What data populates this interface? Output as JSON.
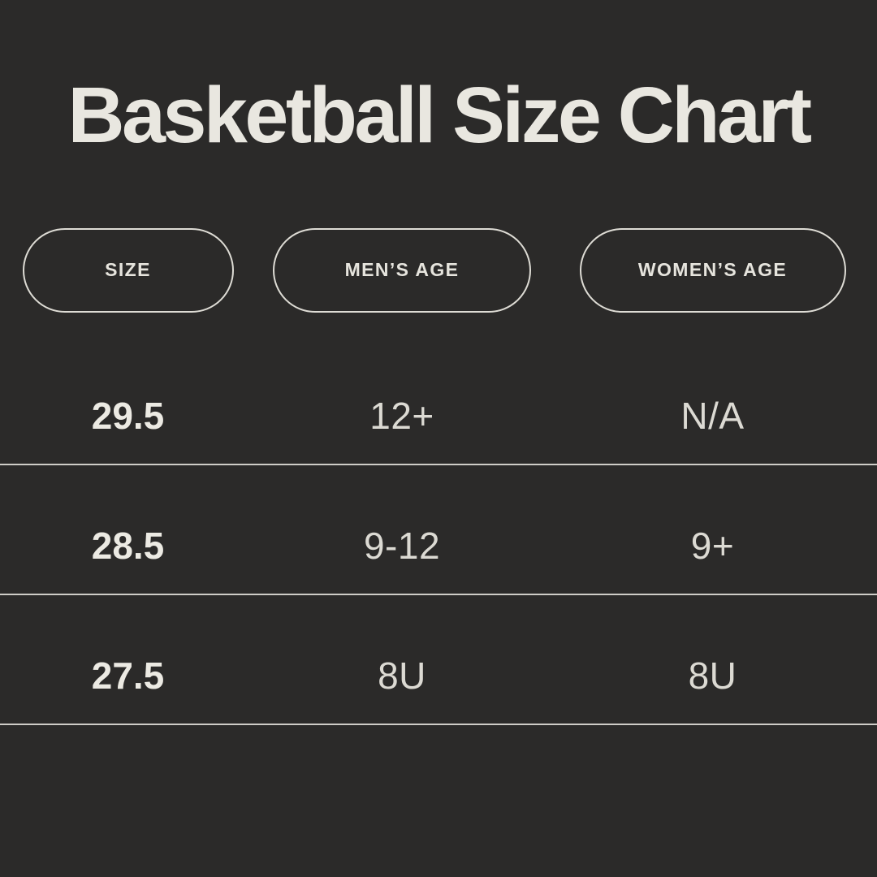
{
  "title": "Basketball Size Chart",
  "table": {
    "headers": [
      "SIZE",
      "MEN’S AGE",
      "WOMEN’S AGE"
    ],
    "rows": [
      {
        "cells": [
          "29.5",
          "12+",
          "N/A"
        ]
      },
      {
        "cells": [
          "28.5",
          "9-12",
          "9+"
        ]
      },
      {
        "cells": [
          "27.5",
          "8U",
          "8U"
        ]
      }
    ]
  },
  "chart_data": {
    "type": "table",
    "title": "Basketball Size Chart",
    "columns": [
      "SIZE",
      "MEN’S AGE",
      "WOMEN’S AGE"
    ],
    "rows": [
      [
        "29.5",
        "12+",
        "N/A"
      ],
      [
        "28.5",
        "9-12",
        "9+"
      ],
      [
        "27.5",
        "8U",
        "8U"
      ]
    ]
  },
  "colors": {
    "background": "#2b2a29",
    "text": "#e9e7e0",
    "secondary_text": "#dcdad3",
    "pill_border": "#dedcd5",
    "divider": "#cfcdc7"
  }
}
